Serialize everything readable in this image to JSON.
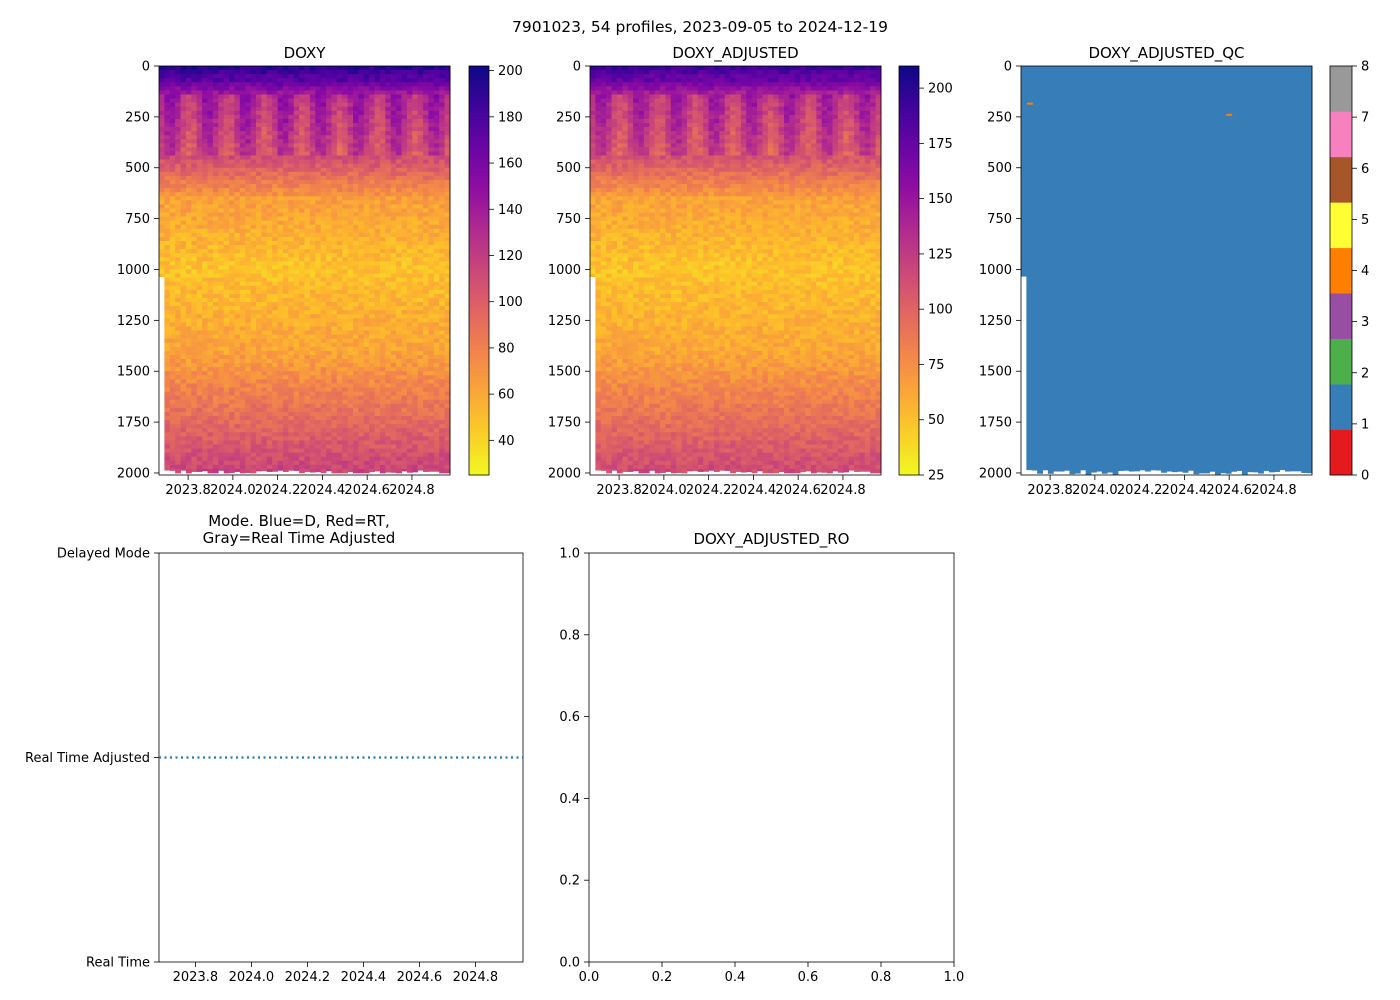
{
  "suptitle": "7901023, 54 profiles, 2023-09-05 to 2024-12-19",
  "chart_data": [
    {
      "id": "doxy",
      "type": "heatmap",
      "title": "DOXY",
      "xlim": [
        2023.67,
        2024.97
      ],
      "ylim": [
        2010,
        0
      ],
      "xticks": [
        2023.8,
        2024.0,
        2024.2,
        2024.4,
        2024.6,
        2024.8
      ],
      "xtick_labels": [
        "2023.8",
        "2024.0",
        "2024.2",
        "2024.4",
        "2024.6",
        "2024.8"
      ],
      "yticks": [
        0,
        250,
        500,
        750,
        1000,
        1250,
        1500,
        1750,
        2000
      ],
      "ytick_labels": [
        "0",
        "250",
        "500",
        "750",
        "1000",
        "1250",
        "1500",
        "1750",
        "2000"
      ],
      "colormap": "plasma_r",
      "clim": [
        25,
        202
      ],
      "colorbar_ticks": [
        40,
        60,
        80,
        100,
        120,
        140,
        160,
        180,
        200
      ],
      "colorbar_tick_labels": [
        "40",
        "60",
        "80",
        "100",
        "120",
        "140",
        "160",
        "180",
        "200"
      ],
      "profiles": 54
    },
    {
      "id": "doxy-adjusted",
      "type": "heatmap",
      "title": "DOXY_ADJUSTED",
      "xlim": [
        2023.67,
        2024.97
      ],
      "ylim": [
        2010,
        0
      ],
      "xticks": [
        2023.8,
        2024.0,
        2024.2,
        2024.4,
        2024.6,
        2024.8
      ],
      "xtick_labels": [
        "2023.8",
        "2024.0",
        "2024.2",
        "2024.4",
        "2024.6",
        "2024.8"
      ],
      "yticks": [
        0,
        250,
        500,
        750,
        1000,
        1250,
        1500,
        1750,
        2000
      ],
      "ytick_labels": [
        "0",
        "250",
        "500",
        "750",
        "1000",
        "1250",
        "1500",
        "1750",
        "2000"
      ],
      "colormap": "plasma_r",
      "clim": [
        25,
        210
      ],
      "colorbar_ticks": [
        25,
        50,
        75,
        100,
        125,
        150,
        175,
        200
      ],
      "colorbar_tick_labels": [
        "25",
        "50",
        "75",
        "100",
        "125",
        "150",
        "175",
        "200"
      ],
      "profiles": 54
    },
    {
      "id": "doxy-adjusted-qc",
      "type": "heatmap",
      "title": "DOXY_ADJUSTED_QC",
      "xlim": [
        2023.67,
        2024.97
      ],
      "ylim": [
        2010,
        0
      ],
      "xticks": [
        2023.8,
        2024.0,
        2024.2,
        2024.4,
        2024.6,
        2024.8
      ],
      "xtick_labels": [
        "2023.8",
        "2024.0",
        "2024.2",
        "2024.4",
        "2024.6",
        "2024.8"
      ],
      "yticks": [
        0,
        250,
        500,
        750,
        1000,
        1250,
        1500,
        1750,
        2000
      ],
      "ytick_labels": [
        "0",
        "250",
        "500",
        "750",
        "1000",
        "1250",
        "1500",
        "1750",
        "2000"
      ],
      "dominant_flag": 1,
      "flagged_points": [
        {
          "x": 2023.71,
          "y": 185,
          "flag": 4
        },
        {
          "x": 2024.6,
          "y": 240,
          "flag": 4
        }
      ],
      "clim": [
        0,
        8
      ],
      "colorbar_classes": [
        {
          "value": 0,
          "color": "#e41a1c"
        },
        {
          "value": 1,
          "color": "#377eb8"
        },
        {
          "value": 2,
          "color": "#4daf4a"
        },
        {
          "value": 3,
          "color": "#984ea3"
        },
        {
          "value": 4,
          "color": "#ff7f00"
        },
        {
          "value": 5,
          "color": "#ffff33"
        },
        {
          "value": 6,
          "color": "#a65628"
        },
        {
          "value": 7,
          "color": "#f781bf"
        }
      ],
      "colorbar_ticks": [
        0,
        1,
        2,
        3,
        4,
        5,
        6,
        7,
        8
      ],
      "colorbar_tick_labels": [
        "0",
        "1",
        "2",
        "3",
        "4",
        "5",
        "6",
        "7",
        "8"
      ]
    },
    {
      "id": "mode",
      "type": "line",
      "title_line1": "Mode. Blue=D, Red=RT,",
      "title_line2": "Gray=Real Time Adjusted",
      "xlim": [
        2023.67,
        2024.97
      ],
      "ylim": [
        0,
        2
      ],
      "xticks": [
        2023.8,
        2024.0,
        2024.2,
        2024.4,
        2024.6,
        2024.8
      ],
      "xtick_labels": [
        "2023.8",
        "2024.0",
        "2024.2",
        "2024.4",
        "2024.6",
        "2024.8"
      ],
      "yticks": [
        0,
        1,
        2
      ],
      "ytick_labels": [
        "Real Time",
        "Real Time Adjusted",
        "Delayed Mode"
      ],
      "series": [
        {
          "name": "mode",
          "style": "dotted",
          "color": "#1f77b4",
          "x_range": [
            2023.67,
            2024.97
          ],
          "value": 1
        }
      ]
    },
    {
      "id": "doxy-adjusted-ro",
      "type": "line",
      "title": "DOXY_ADJUSTED_RO",
      "xlim": [
        0,
        1
      ],
      "ylim": [
        0,
        1
      ],
      "xticks": [
        0,
        0.2,
        0.4,
        0.6,
        0.8,
        1.0
      ],
      "xtick_labels": [
        "0.0",
        "0.2",
        "0.4",
        "0.6",
        "0.8",
        "1.0"
      ],
      "yticks": [
        0,
        0.2,
        0.4,
        0.6,
        0.8,
        1.0
      ],
      "ytick_labels": [
        "0.0",
        "0.2",
        "0.4",
        "0.6",
        "0.8",
        "1.0"
      ],
      "series": []
    }
  ]
}
